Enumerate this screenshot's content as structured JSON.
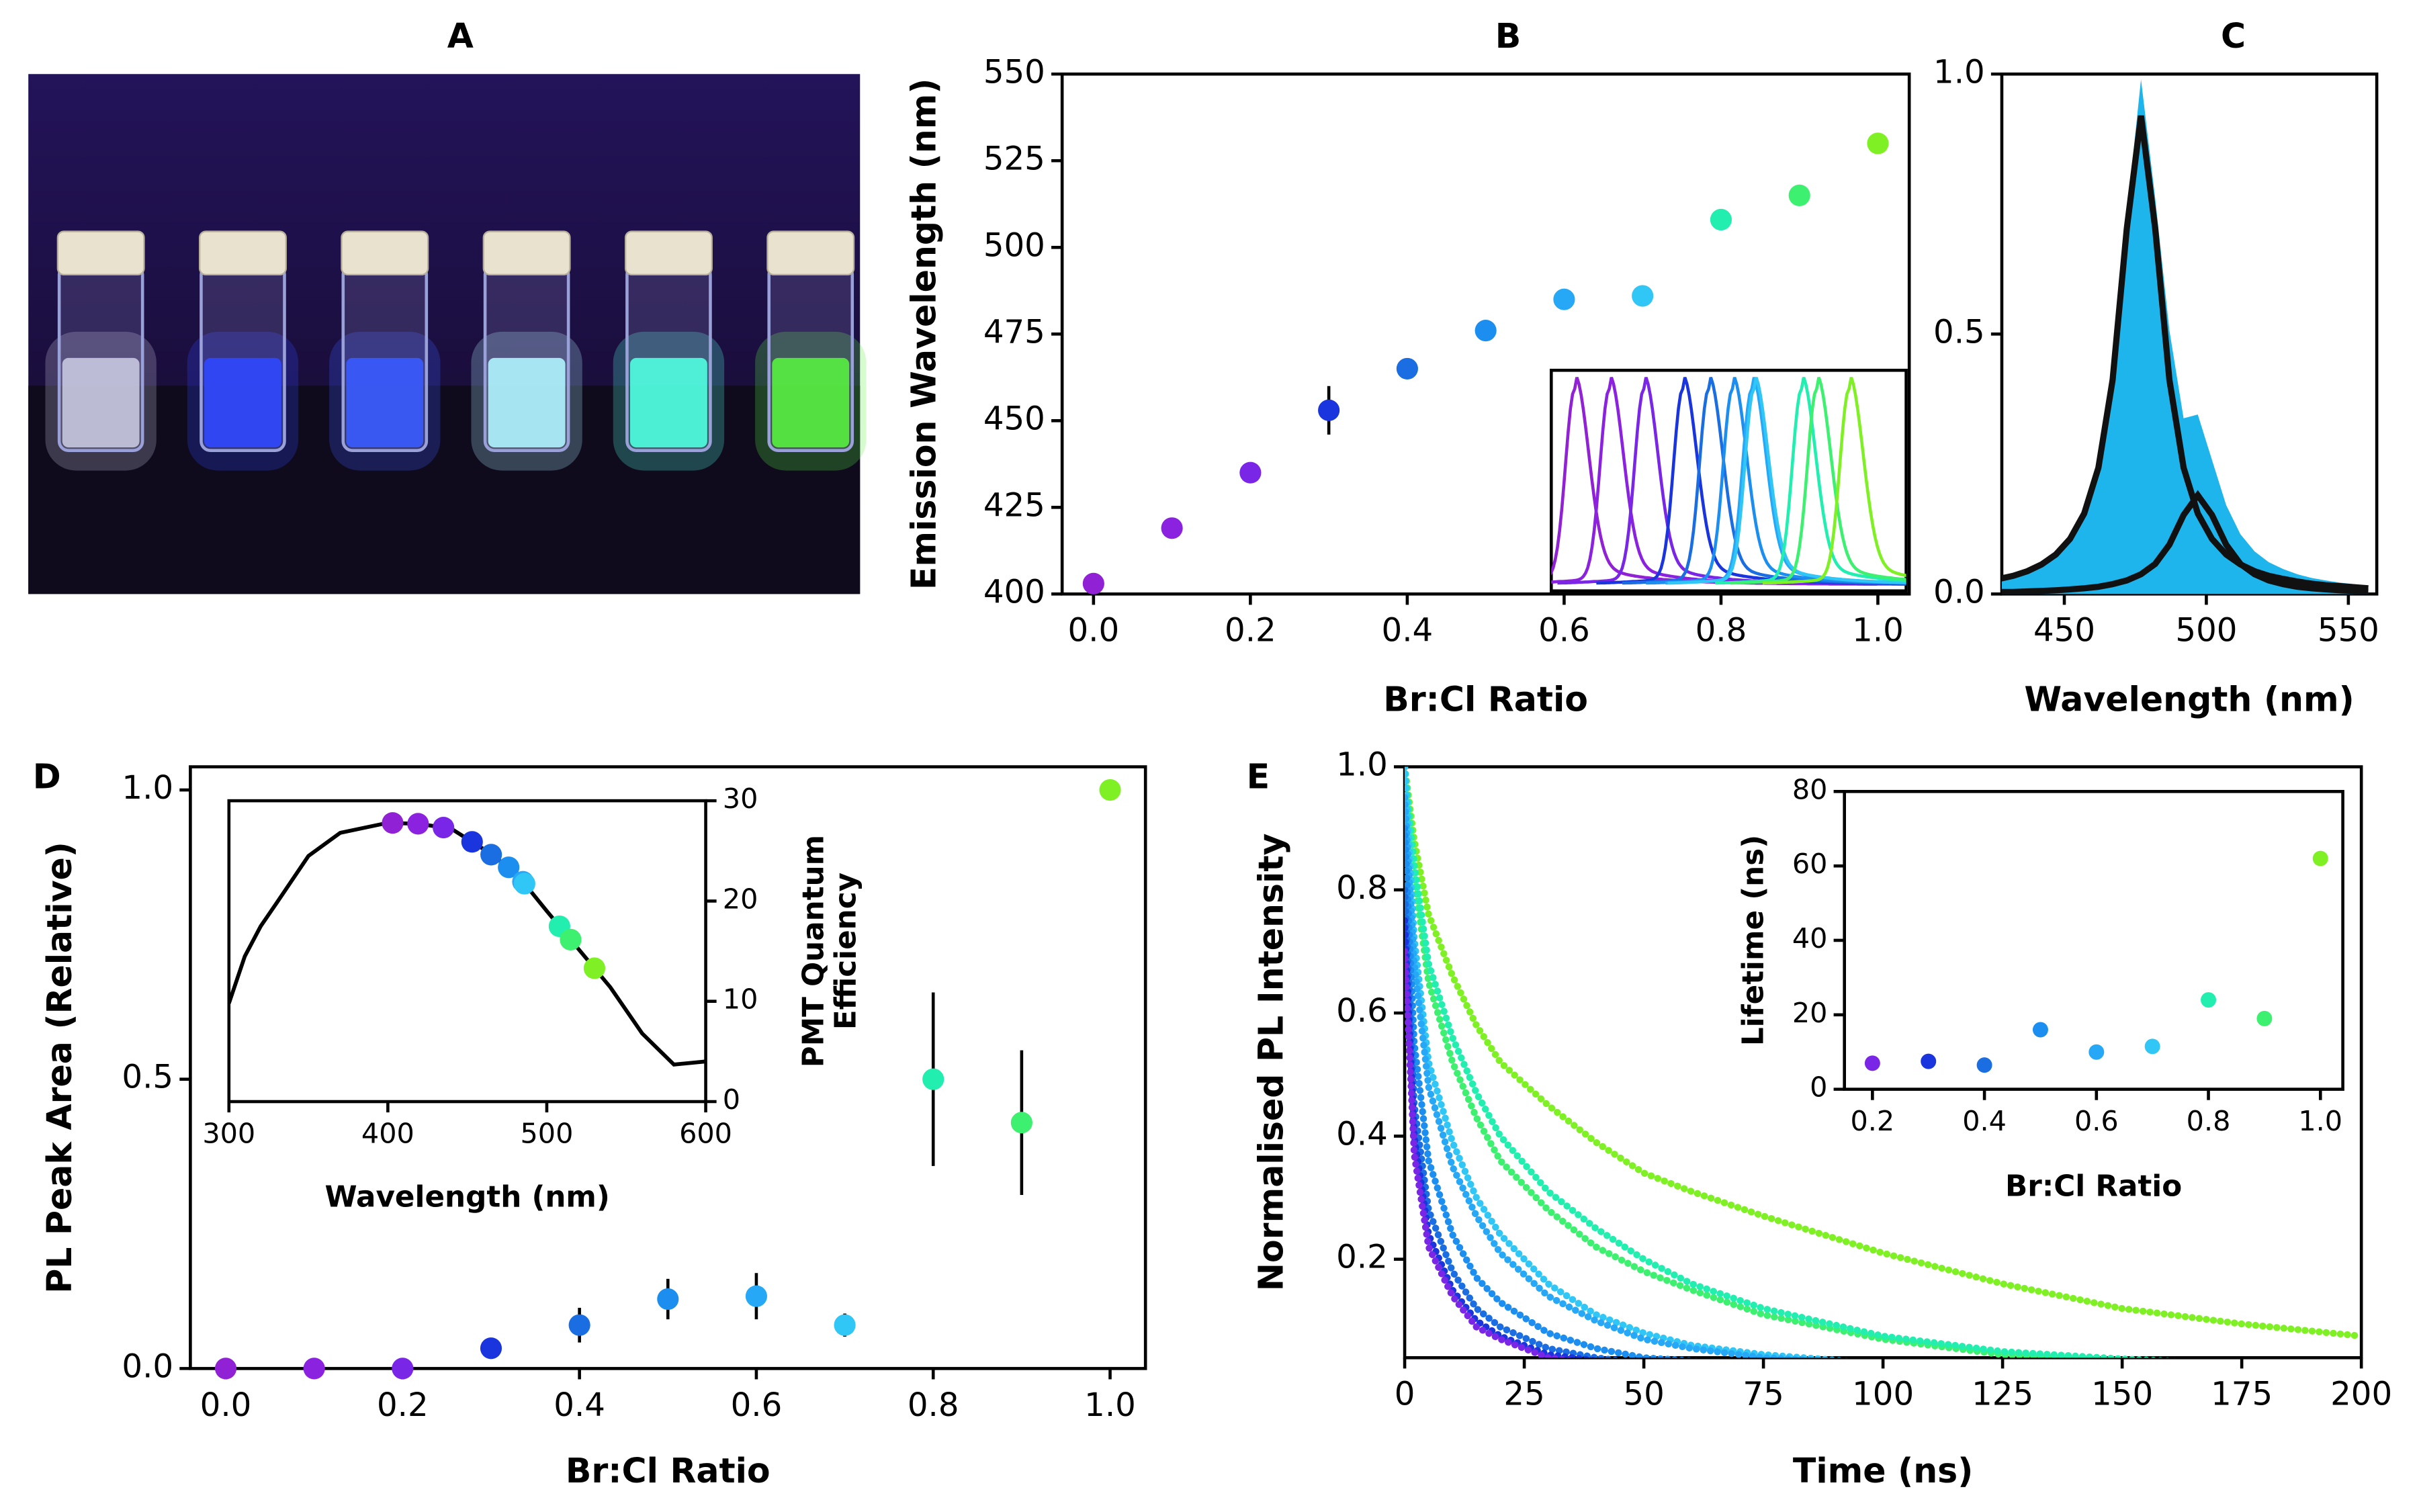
{
  "chart_data": [
    {
      "type": "image",
      "title": "A"
    },
    {
      "type": "scatter",
      "title": "B",
      "x": [
        0,
        0.1,
        0.2,
        0.3,
        0.4,
        0.5,
        0.6,
        0.7,
        0.8,
        0.9,
        1.0
      ],
      "values": [
        403,
        419,
        435,
        453,
        465,
        476,
        485,
        486,
        508,
        515,
        530
      ],
      "errors": [
        null,
        null,
        null,
        7,
        3,
        null,
        null,
        3,
        null,
        null,
        null
      ],
      "colors": [
        "#9121d4",
        "#8a22e0",
        "#7a26e6",
        "#1a35de",
        "#1a6ee2",
        "#1c8ef0",
        "#27a8f6",
        "#30c6f6",
        "#22eeb0",
        "#3ef070",
        "#7ff024"
      ],
      "xlim": [
        -0.04,
        1.04
      ],
      "ylim": [
        400,
        550
      ],
      "xticks": [
        {
          "value": 0,
          "label": "0.0"
        },
        0.2,
        0.4,
        0.6,
        0.8,
        {
          "value": 1,
          "label": "1.0"
        }
      ],
      "yticks": [
        400,
        425,
        450,
        475,
        500,
        525,
        550
      ],
      "xlabel": "Br:Cl Ratio",
      "ylabel": "Emission Wavelength (nm)"
    },
    {
      "type": "line",
      "title": "C",
      "x": [
        427,
        432,
        437,
        442,
        447,
        452,
        457,
        462,
        467,
        472,
        477,
        482,
        487,
        492,
        497,
        502,
        507,
        512,
        517,
        522,
        527,
        532,
        537,
        542,
        547,
        552,
        557
      ],
      "series": [
        {
          "color": "#1eb4ec",
          "fill": true,
          "values": [
            0.033,
            0.039,
            0.049,
            0.063,
            0.083,
            0.115,
            0.166,
            0.257,
            0.431,
            0.729,
            0.99,
            0.761,
            0.507,
            0.338,
            0.345,
            0.258,
            0.171,
            0.115,
            0.082,
            0.061,
            0.048,
            0.038,
            0.031,
            0.026,
            0.022,
            0.019,
            0.016
          ]
        },
        {
          "color": "#111111",
          "values": [
            0.029,
            0.035,
            0.044,
            0.057,
            0.076,
            0.106,
            0.155,
            0.243,
            0.412,
            0.703,
            0.92,
            0.703,
            0.412,
            0.243,
            0.155,
            0.106,
            0.076,
            0.057,
            0.044,
            0.035,
            0.029,
            0.024,
            0.02,
            0.017,
            0.015,
            0.013,
            0.011
          ]
        },
        {
          "color": "#111111",
          "values": [
            0.004,
            0.004,
            0.005,
            0.006,
            0.007,
            0.009,
            0.011,
            0.014,
            0.019,
            0.026,
            0.038,
            0.058,
            0.095,
            0.152,
            0.19,
            0.152,
            0.095,
            0.058,
            0.038,
            0.026,
            0.019,
            0.014,
            0.011,
            0.009,
            0.007,
            0.006,
            0.005
          ]
        }
      ],
      "xlim": [
        428,
        560
      ],
      "ylim": [
        0,
        1.0
      ],
      "xticks": [
        450,
        500,
        550
      ],
      "yticks": [
        {
          "value": 0,
          "label": "0.0"
        },
        {
          "value": 0.5,
          "label": "0.5"
        },
        {
          "value": 1,
          "label": "1.0"
        }
      ],
      "xlabel": "Wavelength (nm)"
    },
    {
      "type": "scatter",
      "title": "D",
      "x": [
        0,
        0.1,
        0.2,
        0.3,
        0.4,
        0.5,
        0.6,
        0.7,
        0.8,
        0.9,
        1.0
      ],
      "values": [
        0,
        0,
        0,
        0.035,
        0.075,
        0.12,
        0.125,
        0.075,
        0.5,
        0.425,
        1.0
      ],
      "errors": [
        null,
        null,
        null,
        null,
        0.03,
        0.035,
        0.04,
        0.02,
        0.15,
        0.125,
        null
      ],
      "colors": [
        "#9121d4",
        "#8a22e0",
        "#7a26e6",
        "#1a35de",
        "#1a6ee2",
        "#1c8ef0",
        "#27a8f6",
        "#30c6f6",
        "#22eeb0",
        "#3ef070",
        "#7ff024"
      ],
      "xlim": [
        -0.04,
        1.04
      ],
      "ylim": [
        0,
        1.04
      ],
      "xticks": [
        {
          "value": 0,
          "label": "0.0"
        },
        0.2,
        0.4,
        0.6,
        0.8,
        {
          "value": 1,
          "label": "1.0"
        }
      ],
      "yticks": [
        {
          "value": 0,
          "label": "0.0"
        },
        {
          "value": 0.5,
          "label": "0.5"
        },
        {
          "value": 1,
          "label": "1.0"
        }
      ],
      "xlabel": "Br:Cl Ratio",
      "ylabel": "PL Peak Area (Relative)",
      "inset": {
        "type": "line",
        "x": [
          300,
          310,
          320,
          330,
          350,
          370,
          400,
          420,
          440,
          460,
          480,
          500,
          520,
          540,
          560,
          580,
          600
        ],
        "values": [
          9.8,
          14.5,
          17.5,
          19.8,
          24.5,
          26.8,
          27.8,
          27.7,
          27.2,
          25.2,
          22.9,
          19,
          15.2,
          11.4,
          6.8,
          3.7,
          4
        ],
        "color": "#000000",
        "colors": [
          "#9121d4",
          "#8a22e0",
          "#7a26e6",
          "#1a35de",
          "#1a6ee2",
          "#1c8ef0",
          "#27a8f6",
          "#30c6f6",
          "#22eeb0",
          "#3ef070",
          "#7ff024"
        ],
        "xlim": [
          300,
          600
        ],
        "ylim": [
          0,
          30
        ],
        "xticks": [
          300,
          400,
          500,
          600
        ],
        "yticks": [
          0,
          10,
          20,
          30
        ],
        "yaxis_side": "right",
        "xlabel": "Wavelength (nm)",
        "ylabel": [
          "PMT Quantum",
          "Efficiency"
        ]
      }
    },
    {
      "type": "line",
      "title": "E",
      "x": [
        0,
        2,
        5,
        10,
        15,
        20,
        30,
        40,
        50,
        60,
        75,
        100,
        125,
        150,
        175,
        200
      ],
      "series": [
        {
          "color": "#7ff024",
          "values": [
            1.0,
            0.88,
            0.76,
            0.66,
            0.58,
            0.52,
            0.45,
            0.39,
            0.34,
            0.31,
            0.27,
            0.21,
            0.16,
            0.12,
            0.095,
            0.075
          ]
        },
        {
          "color": "#3ef070",
          "values": [
            1.0,
            0.82,
            0.65,
            0.52,
            0.43,
            0.36,
            0.28,
            0.22,
            0.18,
            0.15,
            0.11,
            0.07,
            0.045,
            0.035,
            0.03,
            0.025
          ]
        },
        {
          "color": "#22eeb0",
          "values": [
            1.0,
            0.84,
            0.68,
            0.56,
            0.47,
            0.4,
            0.31,
            0.25,
            0.2,
            0.16,
            0.12,
            0.075,
            0.05,
            0.038,
            0.03,
            0.025
          ]
        },
        {
          "color": "#30c6f6",
          "values": [
            1.0,
            0.72,
            0.52,
            0.39,
            0.3,
            0.24,
            0.16,
            0.11,
            0.08,
            0.06,
            0.045,
            0.03,
            0.025,
            0.02,
            0.02,
            0.02
          ]
        },
        {
          "color": "#27a8f6",
          "values": [
            0.95,
            0.68,
            0.48,
            0.35,
            0.27,
            0.21,
            0.14,
            0.1,
            0.07,
            0.055,
            0.04,
            0.03,
            0.025,
            0.02,
            0.02,
            0.02
          ]
        },
        {
          "color": "#1c8ef0",
          "values": [
            0.9,
            0.55,
            0.36,
            0.24,
            0.17,
            0.13,
            0.08,
            0.055,
            0.04,
            0.035,
            0.03,
            0.025,
            0.02,
            0.02,
            0.02,
            0.02
          ]
        },
        {
          "color": "#1a6ee2",
          "values": [
            0.8,
            0.45,
            0.28,
            0.18,
            0.12,
            0.09,
            0.055,
            0.04,
            0.03,
            0.025,
            0.02,
            0.02,
            0.02,
            0.02,
            0.02,
            0.02
          ]
        },
        {
          "color": "#1a35de",
          "values": [
            0.75,
            0.4,
            0.24,
            0.15,
            0.1,
            0.075,
            0.045,
            0.035,
            0.025,
            0.02,
            0.02,
            0.02,
            0.02,
            0.02,
            0.02,
            0.02
          ]
        },
        {
          "color": "#7a26e6",
          "values": [
            0.7,
            0.37,
            0.22,
            0.14,
            0.09,
            0.07,
            0.04,
            0.03,
            0.02,
            0.015,
            0.015,
            0.015,
            0.015,
            0.015,
            0.015,
            0.015
          ]
        }
      ],
      "dotted": true,
      "xlim": [
        0,
        200
      ],
      "ylim": [
        0.04,
        1.0
      ],
      "xticks": [
        0,
        25,
        50,
        75,
        100,
        125,
        150,
        175,
        200
      ],
      "yticks": [
        0.2,
        0.4,
        0.6,
        0.8,
        {
          "value": 1,
          "label": "1.0"
        }
      ],
      "xlabel": "Time (ns)",
      "ylabel": "Normalised PL Intensity",
      "inset": {
        "type": "scatter",
        "x": [
          0.2,
          0.3,
          0.4,
          0.5,
          0.6,
          0.7,
          0.8,
          0.9,
          1.0
        ],
        "values": [
          7,
          7.5,
          6.5,
          16,
          10,
          11.5,
          24,
          19,
          62
        ],
        "colors": [
          "#7a26e6",
          "#1a35de",
          "#1a6ee2",
          "#1c8ef0",
          "#27a8f6",
          "#30c6f6",
          "#22eeb0",
          "#3ef070",
          "#7ff024"
        ],
        "xlim": [
          0.15,
          1.04
        ],
        "ylim": [
          0,
          80
        ],
        "xticks": [
          0.2,
          0.4,
          0.6,
          0.8,
          {
            "value": 1,
            "label": "1.0"
          }
        ],
        "yticks": [
          0,
          20,
          40,
          60,
          80
        ],
        "xlabel": "Br:Cl Ratio",
        "ylabel": "Lifetime (ns)"
      }
    }
  ]
}
